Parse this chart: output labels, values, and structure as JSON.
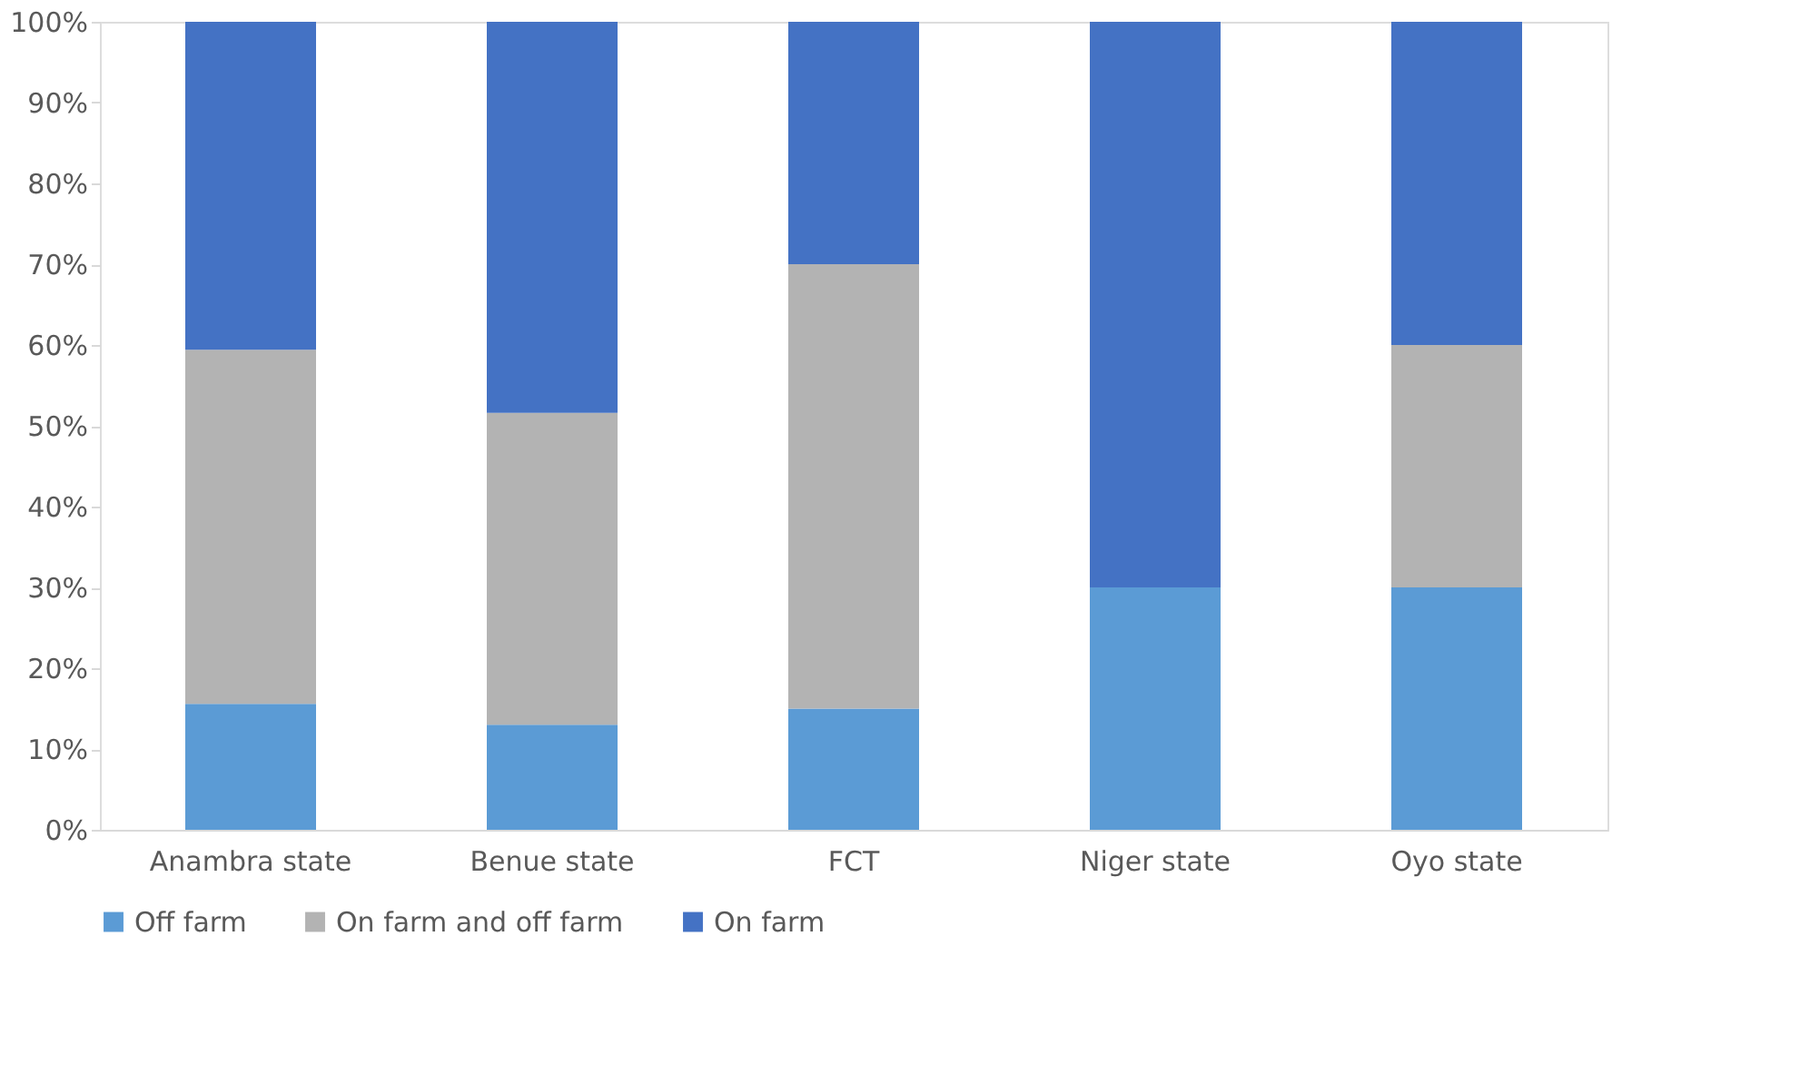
{
  "chart_data": {
    "type": "bar",
    "stacked": true,
    "categories": [
      "Anambra state",
      "Benue state",
      "FCT",
      "Niger state",
      "Oyo state"
    ],
    "series": [
      {
        "name": "Off farm",
        "color": "#5b9bd5",
        "values": [
          15.6,
          13,
          15,
          30,
          30
        ]
      },
      {
        "name": "On farm and off farm",
        "color": "#b3b3b3",
        "values": [
          43.8,
          38.6,
          55,
          0,
          30
        ]
      },
      {
        "name": "On farm",
        "color": "#4472c4",
        "values": [
          40.6,
          48.4,
          30,
          70,
          40
        ]
      }
    ],
    "ylim": [
      0,
      100
    ],
    "yticks": [
      {
        "value": 0,
        "label": "0%"
      },
      {
        "value": 10,
        "label": "10%"
      },
      {
        "value": 20,
        "label": "20%"
      },
      {
        "value": 30,
        "label": "30%"
      },
      {
        "value": 40,
        "label": "40%"
      },
      {
        "value": 50,
        "label": "50%"
      },
      {
        "value": 60,
        "label": "60%"
      },
      {
        "value": 70,
        "label": "70%"
      },
      {
        "value": 80,
        "label": "80%"
      },
      {
        "value": 90,
        "label": "90%"
      },
      {
        "value": 100,
        "label": "100%"
      }
    ],
    "grid": false,
    "legend": "bottom"
  }
}
